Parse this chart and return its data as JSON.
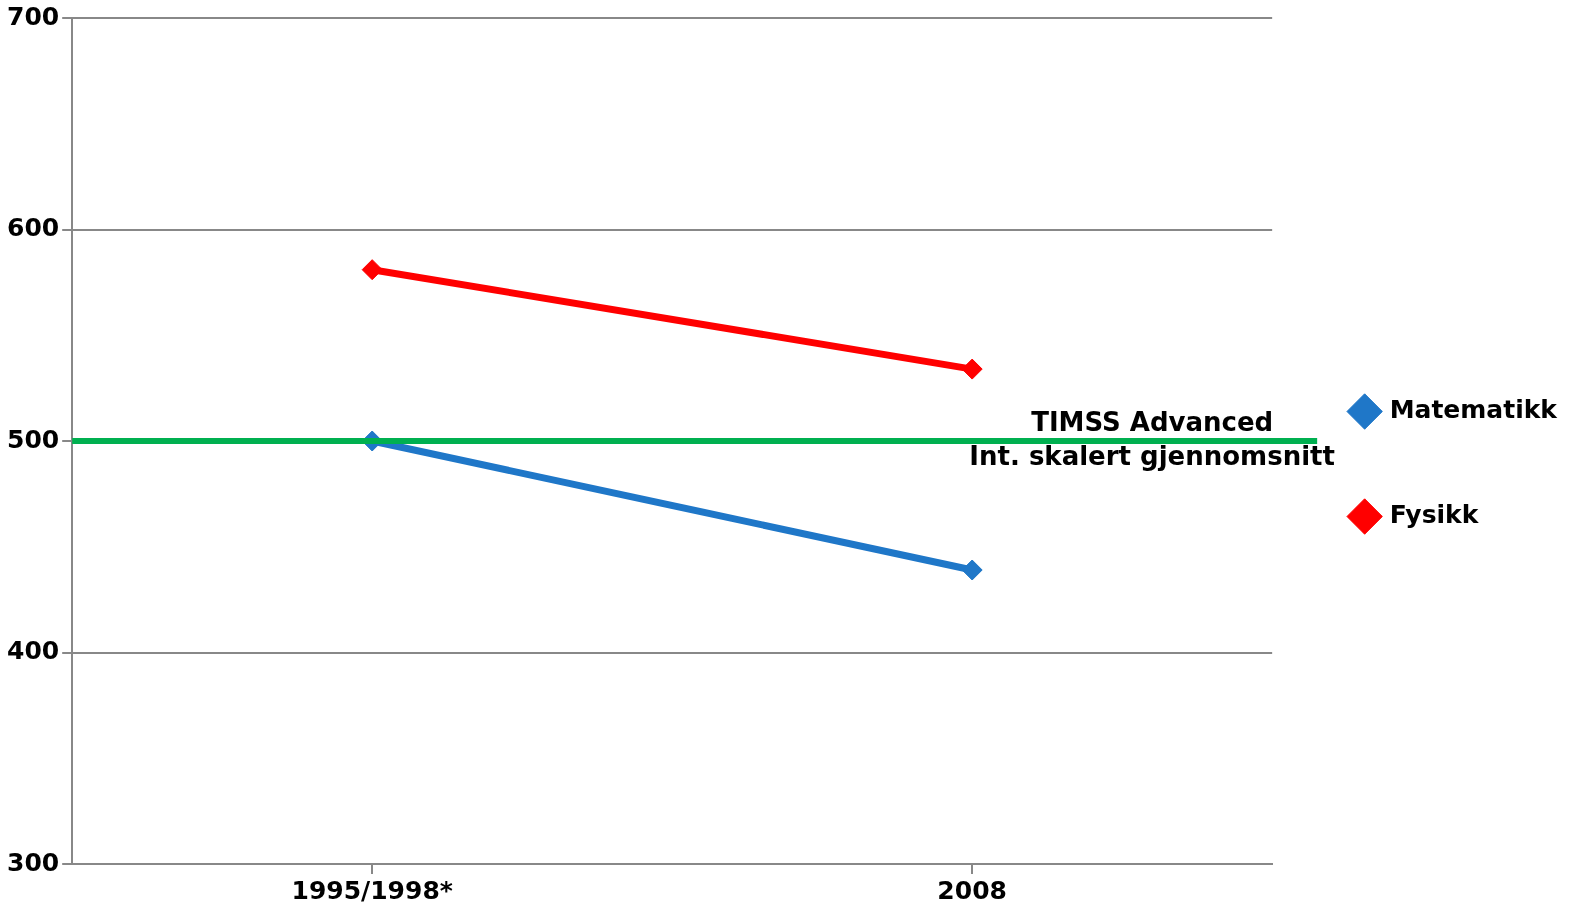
{
  "chart_data": {
    "type": "line",
    "categories": [
      "1995/1998*",
      "2008"
    ],
    "series": [
      {
        "name": "Matematikk",
        "color": "#1f77c8",
        "values": [
          500,
          439
        ]
      },
      {
        "name": "Fysikk",
        "color": "#ff0000",
        "values": [
          581,
          534
        ]
      }
    ],
    "ylim": [
      300,
      700
    ],
    "yticks": [
      300,
      400,
      500,
      600,
      700
    ],
    "grid": "y",
    "legend": "right",
    "marker": "diamond",
    "line_style": "solid",
    "ref_lines": [
      {
        "axis": "y",
        "value": 500,
        "label": "TIMSS Advanced\nInt. skalert gjennomsnitt",
        "color": "#00b050"
      }
    ]
  }
}
